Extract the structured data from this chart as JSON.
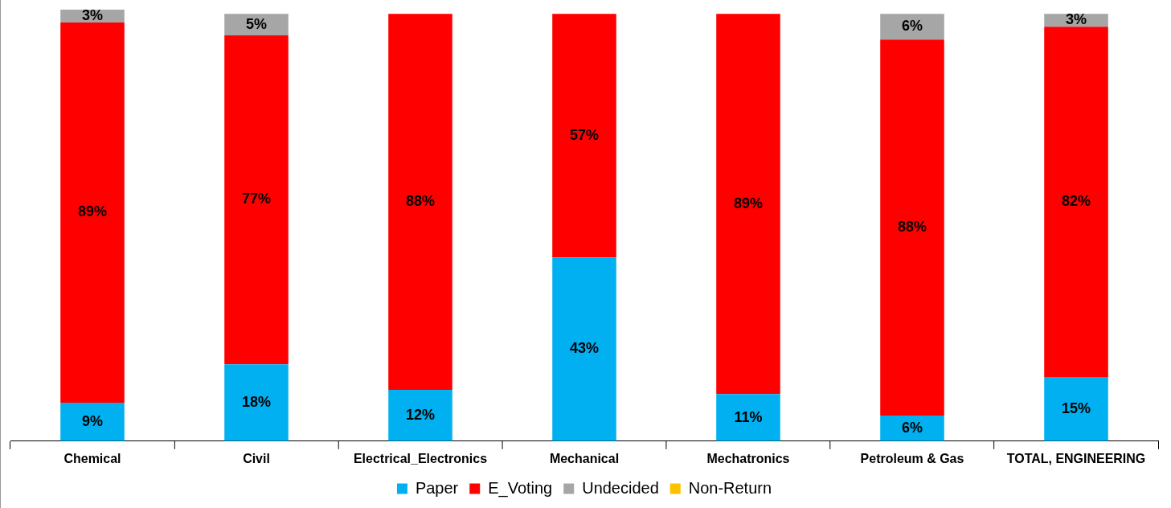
{
  "chart_data": {
    "type": "bar",
    "stacked": true,
    "legend": "bottom",
    "categories": [
      "Chemical",
      "Civil",
      "Electrical_Electronics",
      "Mechanical",
      "Mechatronics",
      "Petroleum & Gas",
      "TOTAL, ENGINEERING"
    ],
    "series": [
      {
        "name": "Paper",
        "color": "#00b0f0",
        "values": [
          9,
          18,
          12,
          43,
          11,
          6,
          15
        ],
        "value_labels": [
          "9%",
          "18%",
          "12%",
          "43%",
          "11%",
          "6%",
          "15%"
        ]
      },
      {
        "name": "E_Voting",
        "color": "#ff0000",
        "values": [
          89,
          77,
          88,
          57,
          89,
          88,
          82
        ],
        "value_labels": [
          "89%",
          "77%",
          "88%",
          "57%",
          "89%",
          "88%",
          "82%"
        ]
      },
      {
        "name": "Undecided",
        "color": "#a6a6a6",
        "values": [
          3,
          5,
          null,
          null,
          null,
          6,
          3
        ],
        "value_labels": [
          "3%",
          "5%",
          null,
          null,
          null,
          "6%",
          "3%"
        ]
      },
      {
        "name": "Non-Return",
        "color": "#ffc000",
        "values": [
          null,
          null,
          null,
          null,
          null,
          null,
          null
        ]
      }
    ]
  }
}
